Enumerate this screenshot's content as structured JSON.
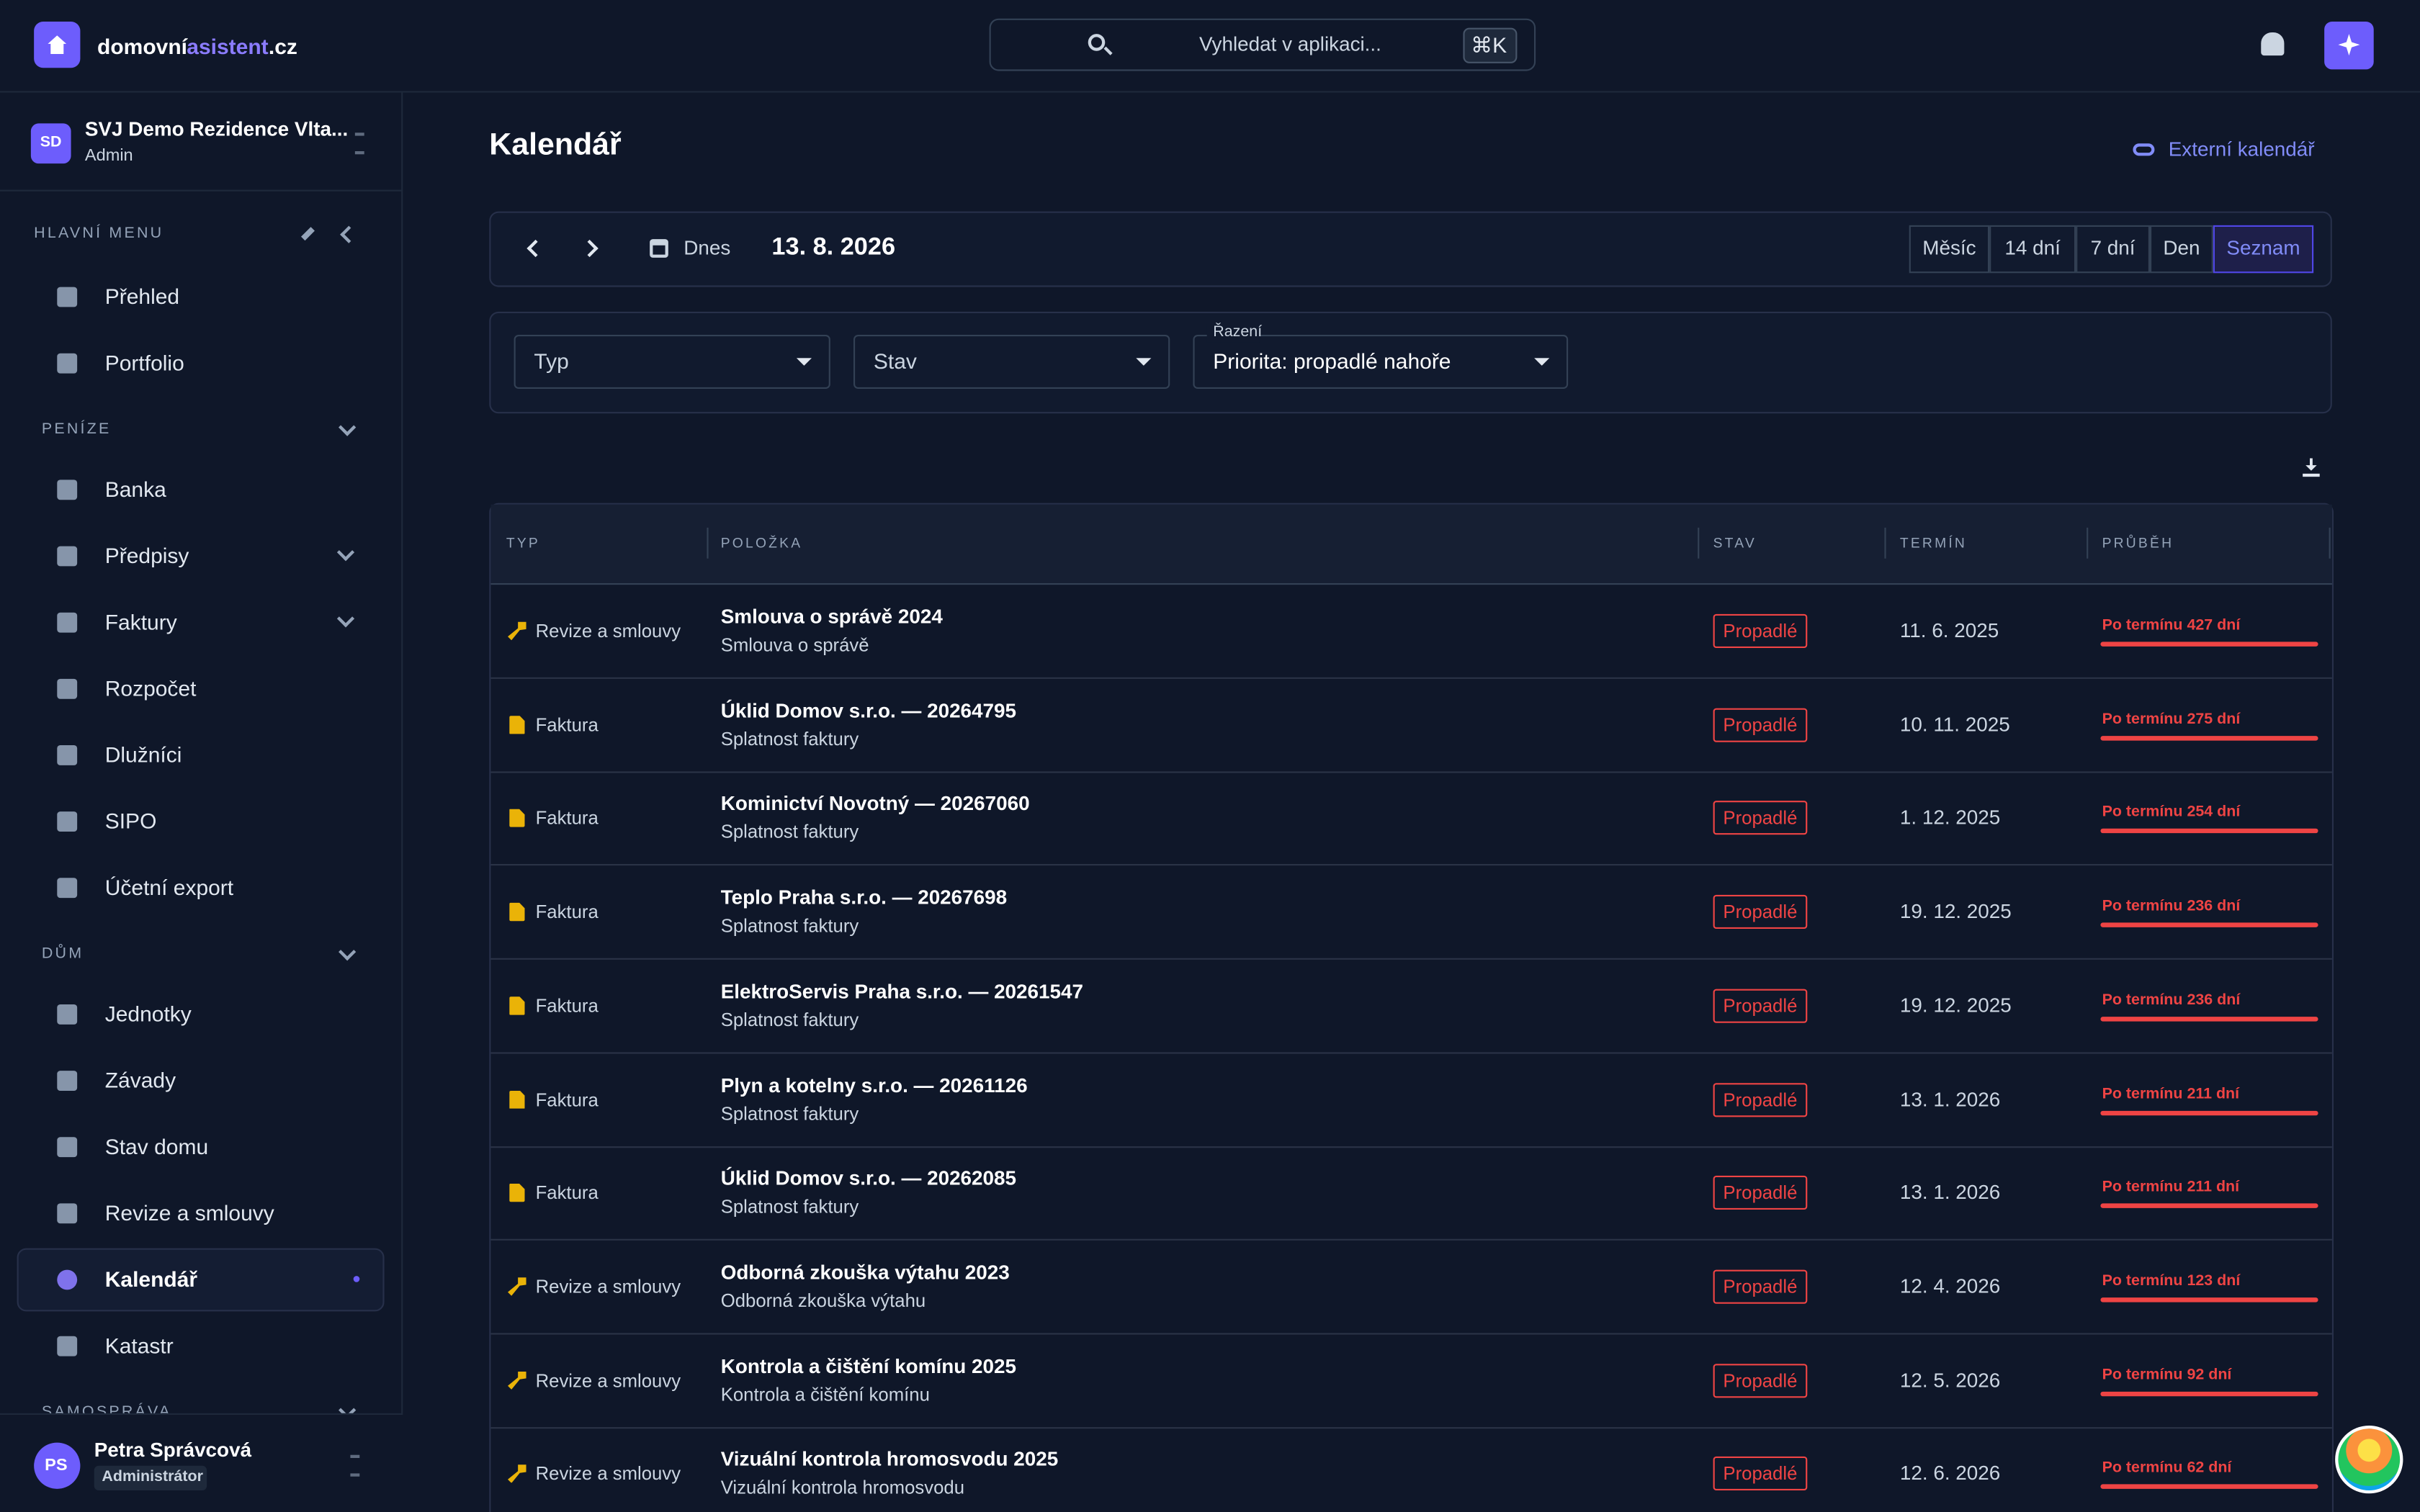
{
  "brand": {
    "name_part1": "domovní",
    "name_part2": "asistent",
    "name_part3": ".cz"
  },
  "search": {
    "placeholder": "Vyhledat v aplikaci...",
    "shortcut": "⌘K"
  },
  "org": {
    "initials": "SD",
    "name": "SVJ Demo Rezidence Vlta...",
    "role": "Admin"
  },
  "sidebar": {
    "sections": [
      {
        "title": "HLAVNÍ MENU",
        "items": [
          {
            "label": "Přehled"
          },
          {
            "label": "Portfolio"
          }
        ]
      },
      {
        "title": "PENÍZE",
        "items": [
          {
            "label": "Banka"
          },
          {
            "label": "Předpisy",
            "expandable": true
          },
          {
            "label": "Faktury",
            "expandable": true
          },
          {
            "label": "Rozpočet"
          },
          {
            "label": "Dlužníci"
          },
          {
            "label": "SIPO"
          },
          {
            "label": "Účetní export"
          }
        ]
      },
      {
        "title": "DŮM",
        "items": [
          {
            "label": "Jednotky"
          },
          {
            "label": "Závady"
          },
          {
            "label": "Stav domu"
          },
          {
            "label": "Revize a smlouvy"
          },
          {
            "label": "Kalendář",
            "active": true
          },
          {
            "label": "Katastr"
          }
        ]
      },
      {
        "title": "SAMOSPRÁVA",
        "items": []
      }
    ]
  },
  "user": {
    "initials": "PS",
    "name": "Petra Správcová",
    "role": "Administrátor"
  },
  "page": {
    "title": "Kalendář",
    "external_link": "Externí kalendář",
    "today": "Dnes",
    "date": "13. 8. 2026",
    "views": [
      {
        "label": "Měsíc"
      },
      {
        "label": "14 dní"
      },
      {
        "label": "7 dní"
      },
      {
        "label": "Den"
      },
      {
        "label": "Seznam",
        "active": true
      }
    ],
    "filters": [
      {
        "label": "Typ"
      },
      {
        "label": "Stav"
      },
      {
        "caption": "Řazení",
        "label": "Priorita: propadlé nahoře"
      }
    ]
  },
  "table": {
    "columns": [
      "TYP",
      "POLOŽKA",
      "STAV",
      "TERMÍN",
      "PRŮBĚH"
    ],
    "rows": [
      {
        "type": "Revize a smlouvy",
        "title": "Smlouva o správě 2024",
        "subtitle": "Smlouva o správě",
        "status": "Propadlé",
        "due": "11. 6. 2025",
        "progress": "Po termínu 427 dní"
      },
      {
        "type": "Faktura",
        "title": "Úklid Domov s.r.o. — 20264795",
        "subtitle": "Splatnost faktury",
        "status": "Propadlé",
        "due": "10. 11. 2025",
        "progress": "Po termínu 275 dní"
      },
      {
        "type": "Faktura",
        "title": "Kominictví Novotný — 20267060",
        "subtitle": "Splatnost faktury",
        "status": "Propadlé",
        "due": "1. 12. 2025",
        "progress": "Po termínu 254 dní"
      },
      {
        "type": "Faktura",
        "title": "Teplo Praha s.r.o. — 20267698",
        "subtitle": "Splatnost faktury",
        "status": "Propadlé",
        "due": "19. 12. 2025",
        "progress": "Po termínu 236 dní"
      },
      {
        "type": "Faktura",
        "title": "ElektroServis Praha s.r.o. — 20261547",
        "subtitle": "Splatnost faktury",
        "status": "Propadlé",
        "due": "19. 12. 2025",
        "progress": "Po termínu 236 dní"
      },
      {
        "type": "Faktura",
        "title": "Plyn a kotelny s.r.o. — 20261126",
        "subtitle": "Splatnost faktury",
        "status": "Propadlé",
        "due": "13. 1. 2026",
        "progress": "Po termínu 211 dní"
      },
      {
        "type": "Faktura",
        "title": "Úklid Domov s.r.o. — 20262085",
        "subtitle": "Splatnost faktury",
        "status": "Propadlé",
        "due": "13. 1. 2026",
        "progress": "Po termínu 211 dní"
      },
      {
        "type": "Revize a smlouvy",
        "title": "Odborná zkouška výtahu 2023",
        "subtitle": "Odborná zkouška výtahu",
        "status": "Propadlé",
        "due": "12. 4. 2026",
        "progress": "Po termínu 123 dní"
      },
      {
        "type": "Revize a smlouvy",
        "title": "Kontrola a čištění komínu 2025",
        "subtitle": "Kontrola a čištění komínu",
        "status": "Propadlé",
        "due": "12. 5. 2026",
        "progress": "Po termínu 92 dní"
      },
      {
        "type": "Revize a smlouvy",
        "title": "Vizuální kontrola hromosvodu 2025",
        "subtitle": "Vizuální kontrola hromosvodu",
        "status": "Propadlé",
        "due": "12. 6. 2026",
        "progress": "Po termínu 62 dní"
      }
    ]
  }
}
